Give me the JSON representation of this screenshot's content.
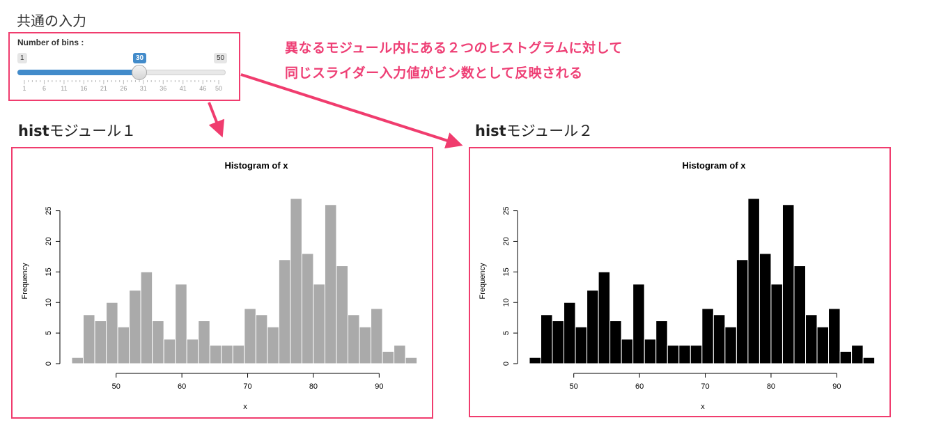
{
  "common_input": {
    "title": "共通の入力",
    "slider": {
      "label": "Number of bins :",
      "min_label": "1",
      "max_label": "50",
      "value_label": "30",
      "min": 1,
      "max": 50,
      "value": 30,
      "tick_labels": [
        "1",
        "6",
        "11",
        "16",
        "21",
        "26",
        "31",
        "36",
        "41",
        "46",
        "50"
      ]
    }
  },
  "annotation": {
    "line1": "異なるモジュール内にある２つのヒストグラムに対して",
    "line2": "同じスライダー入力値がビン数として反映される"
  },
  "modules": [
    {
      "heading_bold": "hist",
      "heading_rest": "モジュール１"
    },
    {
      "heading_bold": "hist",
      "heading_rest": "モジュール２"
    }
  ],
  "colors": {
    "accent": "#f03c6e",
    "annotation": "#ee3f75",
    "slider_blue": "#428bca",
    "bar_gray": "#aaaaaa",
    "bar_black": "#000000"
  },
  "chart_data": [
    {
      "type": "bar",
      "title": "Histogram of x",
      "xlabel": "x",
      "ylabel": "Frequency",
      "bin_width": 1.75,
      "bin_start": 43.25,
      "values": [
        1,
        8,
        7,
        10,
        6,
        12,
        15,
        7,
        4,
        13,
        4,
        7,
        3,
        3,
        3,
        9,
        8,
        6,
        17,
        27,
        18,
        13,
        26,
        16,
        8,
        6,
        9,
        2,
        3,
        1
      ],
      "xlim": [
        43.25,
        96
      ],
      "ylim": [
        0,
        27
      ],
      "x_ticks": [
        50,
        60,
        70,
        80,
        90
      ],
      "y_ticks": [
        0,
        5,
        10,
        15,
        20,
        25
      ],
      "bar_color": "#aaaaaa",
      "bar_border": "#ffffff"
    },
    {
      "type": "bar",
      "title": "Histogram of x",
      "xlabel": "x",
      "ylabel": "Frequency",
      "bin_width": 1.75,
      "bin_start": 43.25,
      "values": [
        1,
        8,
        7,
        10,
        6,
        12,
        15,
        7,
        4,
        13,
        4,
        7,
        3,
        3,
        3,
        9,
        8,
        6,
        17,
        27,
        18,
        13,
        26,
        16,
        8,
        6,
        9,
        2,
        3,
        1
      ],
      "xlim": [
        43.25,
        96
      ],
      "ylim": [
        0,
        27
      ],
      "x_ticks": [
        50,
        60,
        70,
        80,
        90
      ],
      "y_ticks": [
        0,
        5,
        10,
        15,
        20,
        25
      ],
      "bar_color": "#000000",
      "bar_border": "#ffffff"
    }
  ]
}
